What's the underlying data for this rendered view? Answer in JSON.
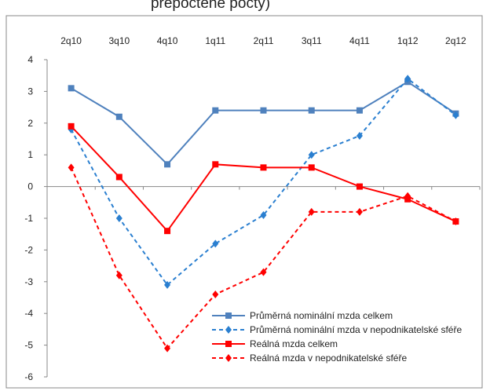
{
  "chart_data": {
    "type": "line",
    "title": "přepočtené počty)",
    "categories": [
      "2q10",
      "3q10",
      "4q10",
      "1q11",
      "2q11",
      "3q11",
      "4q11",
      "1q12",
      "2q12"
    ],
    "ylim": [
      -6,
      4
    ],
    "yticks": [
      -6,
      -5,
      -4,
      -3,
      -2,
      -1,
      0,
      1,
      2,
      3,
      4
    ],
    "grid": false,
    "legend": "lower right",
    "series": [
      {
        "name": "Průměrná nominální mzda celkem",
        "color": "#4f81bd",
        "dash": false,
        "marker": "square",
        "values": [
          3.1,
          2.2,
          0.7,
          2.4,
          2.4,
          2.4,
          2.4,
          3.3,
          2.3
        ]
      },
      {
        "name": "Průměrná nominální mzda v nepodnikatelské sféře",
        "color": "#2a7fd0",
        "dash": true,
        "marker": "diamond",
        "values": [
          1.8,
          -1.0,
          -3.1,
          -1.8,
          -0.9,
          1.0,
          1.6,
          3.4,
          2.25
        ]
      },
      {
        "name": "Reálná mzda celkem",
        "color": "#ff0000",
        "dash": false,
        "marker": "square",
        "values": [
          1.9,
          0.3,
          -1.4,
          0.7,
          0.6,
          0.6,
          0.0,
          -0.4,
          -1.1
        ]
      },
      {
        "name": "Reálná mzda v nepodnikatelské sféře",
        "color": "#ff0000",
        "dash": true,
        "marker": "diamond",
        "values": [
          0.6,
          -2.8,
          -5.1,
          -3.4,
          -2.7,
          -0.8,
          -0.8,
          -0.3,
          -1.1
        ]
      }
    ]
  }
}
